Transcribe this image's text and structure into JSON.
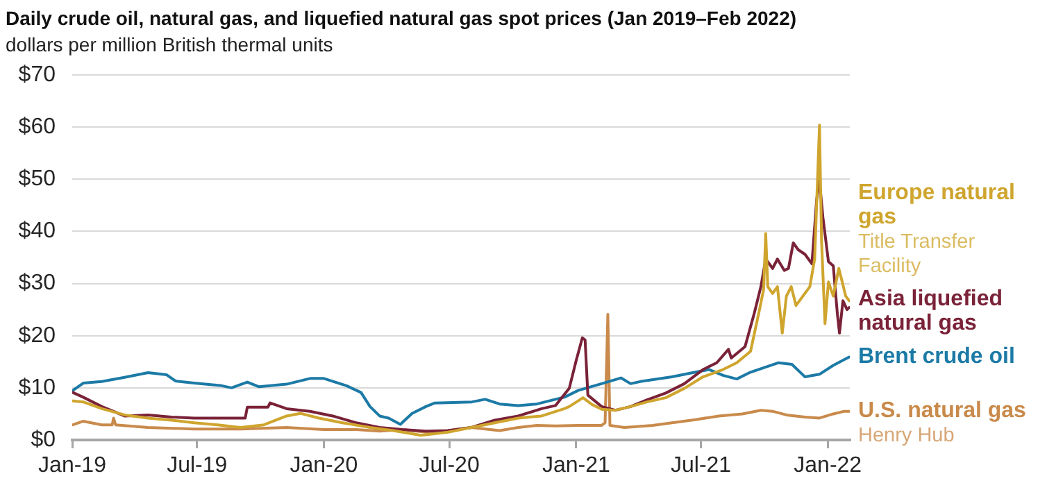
{
  "chart_data": {
    "type": "line",
    "title": "Daily crude oil, natural gas, and liquefied natural gas spot prices (Jan 2019–Feb 2022)",
    "subtitle": "dollars per million British thermal units",
    "xlim": [
      "2019-01-01",
      "2022-02-02"
    ],
    "xticks": [
      {
        "value": "2019-01-01",
        "label": "Jan-19"
      },
      {
        "value": "2019-07-01",
        "label": "Jul-19"
      },
      {
        "value": "2020-01-01",
        "label": "Jan-20"
      },
      {
        "value": "2020-07-01",
        "label": "Jul-20"
      },
      {
        "value": "2021-01-01",
        "label": "Jan-21"
      },
      {
        "value": "2021-07-01",
        "label": "Jul-21"
      },
      {
        "value": "2022-01-01",
        "label": "Jan-22"
      }
    ],
    "ylim": [
      0,
      70
    ],
    "yticks": [
      {
        "value": 0,
        "label": "$0"
      },
      {
        "value": 10,
        "label": "$10"
      },
      {
        "value": 20,
        "label": "$20"
      },
      {
        "value": 30,
        "label": "$30"
      },
      {
        "value": 40,
        "label": "$40"
      },
      {
        "value": 50,
        "label": "$50"
      },
      {
        "value": 60,
        "label": "$60"
      },
      {
        "value": 70,
        "label": "$70"
      }
    ],
    "grid": "y",
    "marker": "none",
    "line_style": "solid",
    "series": [
      {
        "name": "Europe natural gas",
        "color": "#cfa52e",
        "x": [
          "2019-01-02",
          "2019-01-17",
          "2019-02-13",
          "2019-03-18",
          "2019-04-21",
          "2019-05-25",
          "2019-06-27",
          "2019-07-31",
          "2019-09-02",
          "2019-10-06",
          "2019-11-08",
          "2019-11-28",
          "2019-12-25",
          "2020-01-28",
          "2020-03-08",
          "2020-04-11",
          "2020-05-21",
          "2020-06-29",
          "2020-08-02",
          "2020-09-05",
          "2020-10-09",
          "2020-11-12",
          "2020-12-15",
          "2020-12-22",
          "2021-01-11",
          "2021-01-24",
          "2021-02-07",
          "2021-02-27",
          "2021-03-21",
          "2021-04-14",
          "2021-05-11",
          "2021-06-07",
          "2021-07-04",
          "2021-08-02",
          "2021-08-22",
          "2021-09-11",
          "2021-09-24",
          "2021-09-30",
          "2021-10-03",
          "2021-10-06",
          "2021-10-13",
          "2021-10-20",
          "2021-10-27",
          "2021-11-02",
          "2021-11-09",
          "2021-11-16",
          "2021-11-26",
          "2021-12-06",
          "2021-12-13",
          "2021-12-20",
          "2021-12-23",
          "2021-12-28",
          "2022-01-02",
          "2022-01-09",
          "2022-01-17",
          "2022-01-22",
          "2022-01-27",
          "2022-02-01"
        ],
        "values": [
          7.5,
          7.3,
          6.0,
          4.8,
          4.2,
          3.8,
          3.3,
          2.9,
          2.4,
          2.9,
          4.6,
          5.1,
          4.2,
          3.3,
          2.4,
          1.8,
          0.9,
          1.5,
          2.4,
          3.3,
          4.2,
          4.6,
          6.0,
          6.4,
          8.1,
          6.8,
          5.9,
          5.7,
          6.4,
          7.3,
          8.1,
          9.9,
          12.1,
          13.5,
          14.8,
          17.0,
          25.0,
          28.9,
          39.6,
          29.4,
          28.1,
          29.4,
          20.5,
          27.6,
          29.4,
          25.8,
          27.6,
          29.4,
          34.7,
          60.4,
          38.2,
          22.3,
          30.3,
          27.6,
          32.9,
          30.3,
          27.6,
          26.7
        ]
      },
      {
        "name": "Asia liquefied natural gas",
        "color": "#7a2238",
        "x": [
          "2019-01-02",
          "2019-01-17",
          "2019-02-13",
          "2019-03-18",
          "2019-04-21",
          "2019-05-25",
          "2019-06-27",
          "2019-07-31",
          "2019-09-09",
          "2019-09-12",
          "2019-10-12",
          "2019-10-15",
          "2019-11-08",
          "2019-12-12",
          "2020-01-14",
          "2020-02-17",
          "2020-03-22",
          "2020-04-24",
          "2020-05-28",
          "2020-06-29",
          "2020-08-02",
          "2020-09-05",
          "2020-10-09",
          "2020-11-12",
          "2020-12-02",
          "2020-12-22",
          "2021-01-01",
          "2021-01-10",
          "2021-01-14",
          "2021-01-18",
          "2021-02-07",
          "2021-02-27",
          "2021-03-21",
          "2021-04-14",
          "2021-05-11",
          "2021-06-07",
          "2021-07-04",
          "2021-07-24",
          "2021-08-10",
          "2021-08-14",
          "2021-09-03",
          "2021-09-16",
          "2021-09-26",
          "2021-10-03",
          "2021-10-13",
          "2021-10-20",
          "2021-10-30",
          "2021-11-05",
          "2021-11-12",
          "2021-11-19",
          "2021-11-29",
          "2021-12-09",
          "2021-12-16",
          "2021-12-20",
          "2021-12-25",
          "2022-01-02",
          "2022-01-09",
          "2022-01-15",
          "2022-01-18",
          "2022-01-23",
          "2022-01-29",
          "2022-02-01"
        ],
        "values": [
          9.1,
          8.2,
          6.4,
          4.6,
          4.8,
          4.4,
          4.2,
          4.2,
          4.2,
          6.3,
          6.3,
          7.1,
          6.0,
          5.5,
          4.6,
          3.3,
          2.4,
          2.0,
          1.7,
          1.8,
          2.4,
          3.8,
          4.6,
          6.0,
          6.6,
          9.9,
          15.2,
          19.6,
          19.2,
          8.6,
          6.4,
          5.7,
          6.4,
          7.7,
          9.0,
          10.8,
          13.5,
          14.8,
          17.4,
          15.7,
          17.9,
          24.1,
          29.4,
          34.7,
          32.9,
          34.7,
          32.5,
          32.9,
          37.8,
          36.5,
          35.6,
          33.8,
          46.2,
          49.7,
          42.7,
          34.2,
          33.4,
          24.1,
          20.5,
          26.7,
          25.0,
          25.4
        ]
      },
      {
        "name": "Brent crude oil",
        "color": "#1c7aa6",
        "x": [
          "2019-01-02",
          "2019-01-17",
          "2019-02-13",
          "2019-03-18",
          "2019-04-21",
          "2019-05-18",
          "2019-05-31",
          "2019-06-27",
          "2019-08-06",
          "2019-08-20",
          "2019-09-12",
          "2019-09-29",
          "2019-11-08",
          "2019-12-12",
          "2020-01-01",
          "2020-02-03",
          "2020-02-24",
          "2020-03-08",
          "2020-03-22",
          "2020-04-04",
          "2020-04-21",
          "2020-05-08",
          "2020-05-28",
          "2020-06-10",
          "2020-08-03",
          "2020-08-22",
          "2020-09-12",
          "2020-10-09",
          "2020-11-05",
          "2020-12-02",
          "2020-12-15",
          "2021-01-04",
          "2021-02-07",
          "2021-03-07",
          "2021-03-21",
          "2021-04-04",
          "2021-05-20",
          "2021-06-23",
          "2021-07-13",
          "2021-08-02",
          "2021-08-22",
          "2021-09-11",
          "2021-10-01",
          "2021-10-21",
          "2021-11-10",
          "2021-11-29",
          "2021-12-20",
          "2022-01-09",
          "2022-02-01"
        ],
        "values": [
          9.5,
          10.9,
          11.2,
          12.0,
          12.9,
          12.5,
          11.3,
          10.9,
          10.4,
          10.0,
          11.1,
          10.2,
          10.7,
          11.8,
          11.8,
          10.4,
          9.1,
          6.4,
          4.6,
          4.2,
          3.0,
          5.1,
          6.4,
          7.1,
          7.3,
          7.8,
          6.9,
          6.6,
          6.9,
          7.8,
          8.2,
          9.5,
          10.8,
          11.9,
          10.8,
          11.2,
          12.1,
          13.0,
          13.5,
          12.4,
          11.7,
          13.0,
          13.9,
          14.8,
          14.5,
          12.1,
          12.6,
          14.3,
          15.9
        ]
      },
      {
        "name": "U.S. natural gas",
        "color": "#c98a4b",
        "x": [
          "2019-01-02",
          "2019-01-17",
          "2019-02-13",
          "2019-02-28",
          "2019-03-02",
          "2019-03-05",
          "2019-04-21",
          "2019-06-27",
          "2019-09-02",
          "2019-11-08",
          "2020-01-01",
          "2020-02-17",
          "2020-03-22",
          "2020-04-24",
          "2020-05-28",
          "2020-06-29",
          "2020-08-02",
          "2020-09-12",
          "2020-10-09",
          "2020-11-05",
          "2020-12-02",
          "2021-01-04",
          "2021-02-07",
          "2021-02-12",
          "2021-02-16",
          "2021-02-19",
          "2021-03-12",
          "2021-04-22",
          "2021-05-20",
          "2021-06-23",
          "2021-07-27",
          "2021-08-30",
          "2021-09-26",
          "2021-10-13",
          "2021-11-02",
          "2021-11-29",
          "2021-12-20",
          "2022-01-09",
          "2022-01-25",
          "2022-02-01"
        ],
        "values": [
          2.9,
          3.6,
          2.9,
          2.9,
          4.2,
          2.9,
          2.4,
          2.1,
          2.1,
          2.4,
          2.0,
          2.0,
          1.7,
          2.0,
          1.5,
          1.8,
          2.4,
          1.8,
          2.4,
          2.8,
          2.7,
          2.8,
          2.8,
          3.3,
          24.1,
          2.8,
          2.4,
          2.8,
          3.3,
          3.9,
          4.6,
          5.0,
          5.7,
          5.5,
          4.8,
          4.4,
          4.2,
          5.0,
          5.5,
          5.5
        ]
      }
    ],
    "annotations": [
      {
        "text": "Title Transfer Facility",
        "x": "2022-02-01",
        "y": 26.7
      },
      {
        "text": "Henry Hub",
        "x": "2022-02-01",
        "y": 5.5
      }
    ]
  }
}
